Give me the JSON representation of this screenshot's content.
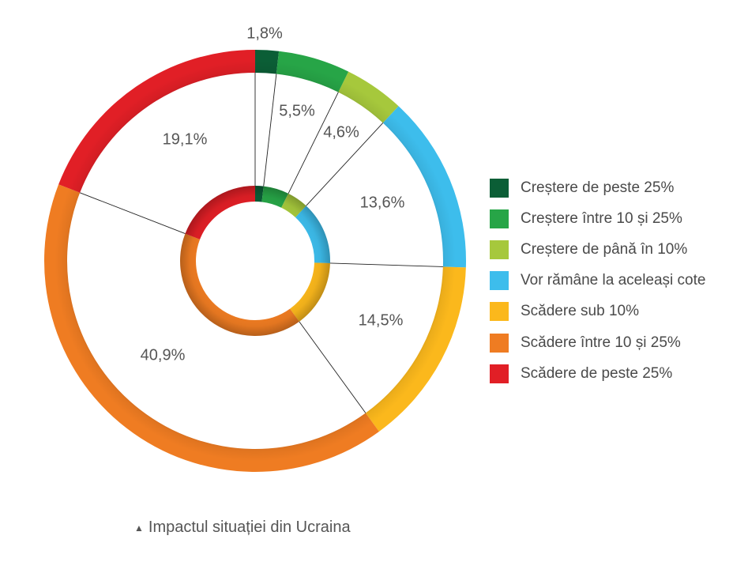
{
  "chart_data": {
    "type": "pie",
    "subtype": "double-donut",
    "title": "",
    "categories": [
      "Creștere de peste 25%",
      "Creștere între 10 și 25%",
      "Creștere de până în 10%",
      "Vor rămâne la aceleași cote",
      "Scădere sub 10%",
      "Scădere între 10 și 25%",
      "Scădere de peste 25%"
    ],
    "values": [
      1.8,
      5.5,
      4.6,
      13.6,
      14.5,
      40.9,
      19.1
    ],
    "value_labels": [
      "1,8%",
      "5,5%",
      "4,6%",
      "13,6%",
      "14,5%",
      "40,9%",
      "19,1%"
    ],
    "colors": [
      "#0b5e36",
      "#27a547",
      "#a6c83c",
      "#3dbdec",
      "#fbb81c",
      "#ef7c22",
      "#e11f26"
    ],
    "legend_position": "right"
  },
  "caption": {
    "icon": "triangle-up-icon",
    "text": "Impactul situației din Ucraina"
  }
}
